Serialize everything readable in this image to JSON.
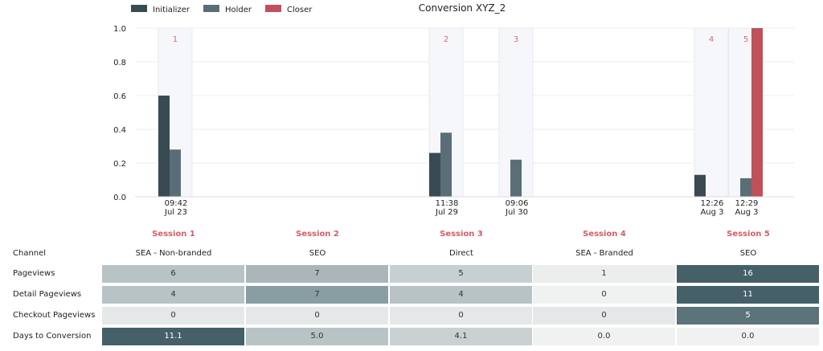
{
  "chart_data": {
    "type": "bar",
    "title": "Conversion XYZ_2",
    "ylim": [
      0,
      1.0
    ],
    "yticks": [
      "0.0",
      "0.2",
      "0.4",
      "0.6",
      "0.8",
      "1.0"
    ],
    "legend_position": "top-left",
    "legend": [
      {
        "name": "Initializer",
        "color": "#3a4a52"
      },
      {
        "name": "Holder",
        "color": "#5a6e78"
      },
      {
        "name": "Closer",
        "color": "#c0505a"
      }
    ],
    "sessions": [
      {
        "num": "1",
        "time": "09:42",
        "date": "Jul 23",
        "initializer": 0.6,
        "holder": 0.28,
        "closer": 0
      },
      {
        "num": "2",
        "time": "11:38",
        "date": "Jul 29",
        "initializer": 0.26,
        "holder": 0.38,
        "closer": 0
      },
      {
        "num": "3",
        "time": "09:06",
        "date": "Jul 30",
        "initializer": 0,
        "holder": 0.22,
        "closer": 0
      },
      {
        "num": "4",
        "time": "12:26",
        "date": "Aug 3",
        "initializer": 0.13,
        "holder": 0,
        "closer": 0
      },
      {
        "num": "5",
        "time": "12:29",
        "date": "Aug 3",
        "initializer": 0,
        "holder": 0.11,
        "closer": 1.0
      }
    ]
  },
  "table": {
    "sessions": [
      "Session 1",
      "Session 2",
      "Session 3",
      "Session 4",
      "Session 5"
    ],
    "channel_label": "Channel",
    "channels": [
      "SEA - Non-branded",
      "SEO",
      "Direct",
      "SEA - Branded",
      "SEO"
    ],
    "rows": [
      {
        "label": "Pageviews",
        "values": [
          "6",
          "7",
          "5",
          "1",
          "16"
        ],
        "colors": [
          "#b8c3c6",
          "#aab6ba",
          "#c6cfd1",
          "#eceeee",
          "#456068"
        ],
        "text": [
          "#333",
          "#333",
          "#333",
          "#333",
          "#ffffff"
        ]
      },
      {
        "label": "Detail Pageviews",
        "values": [
          "4",
          "7",
          "4",
          "0",
          "11"
        ],
        "colors": [
          "#b8c3c6",
          "#889ea3",
          "#b8c3c6",
          "#f0f1f1",
          "#456068"
        ],
        "text": [
          "#333",
          "#333",
          "#333",
          "#333",
          "#ffffff"
        ]
      },
      {
        "label": "Checkout Pageviews",
        "values": [
          "0",
          "0",
          "0",
          "0",
          "5"
        ],
        "colors": [
          "#e4e8e8",
          "#e4e8e8",
          "#e4e8e8",
          "#e4e8e8",
          "#5a747a"
        ],
        "text": [
          "#333",
          "#333",
          "#333",
          "#333",
          "#ffffff"
        ]
      },
      {
        "label": "Days to Conversion",
        "values": [
          "11.1",
          "5.0",
          "4.1",
          "0.0",
          "0.0"
        ],
        "colors": [
          "#456068",
          "#b8c3c6",
          "#c9d1d3",
          "#f0f1f1",
          "#f0f1f1"
        ],
        "text": [
          "#ffffff",
          "#333",
          "#333",
          "#333",
          "#333"
        ]
      }
    ]
  }
}
